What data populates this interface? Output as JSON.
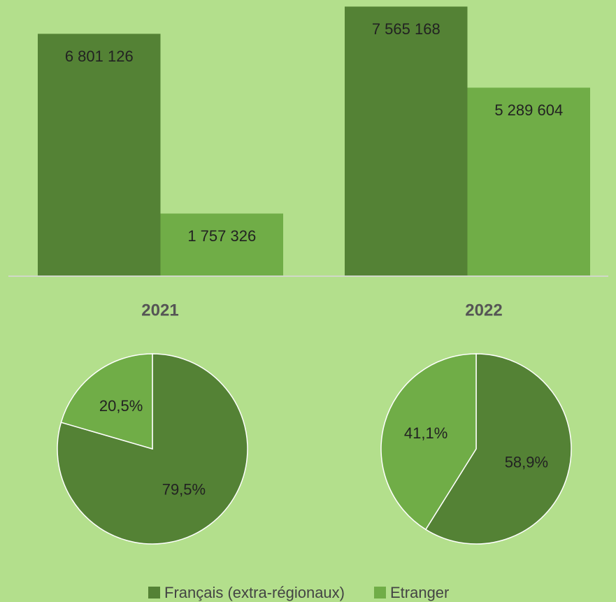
{
  "chart_data": [
    {
      "type": "bar",
      "categories": [
        null,
        null
      ],
      "series": [
        {
          "name": "Français (extra-régionaux)",
          "color": "#548235",
          "values": [
            6801126,
            7565168
          ],
          "value_labels": [
            "6 801 126",
            "7 565 168"
          ]
        },
        {
          "name": "Etranger",
          "color": "#70ad47",
          "values": [
            1757326,
            5289604
          ],
          "value_labels": [
            "1 757 326",
            "5 289 604"
          ]
        }
      ],
      "ylim": [
        0,
        7750000
      ],
      "legend": "bottom"
    },
    {
      "type": "pie",
      "title": "2021",
      "values": [
        79.5,
        20.5
      ],
      "value_labels": [
        "79,5%",
        "20,5%"
      ],
      "colors": [
        "#548235",
        "#70ad47"
      ]
    },
    {
      "type": "pie",
      "title": "2022",
      "values": [
        58.9,
        41.1
      ],
      "value_labels": [
        "58,9%",
        "41,1%"
      ],
      "colors": [
        "#548235",
        "#70ad47"
      ]
    }
  ]
}
